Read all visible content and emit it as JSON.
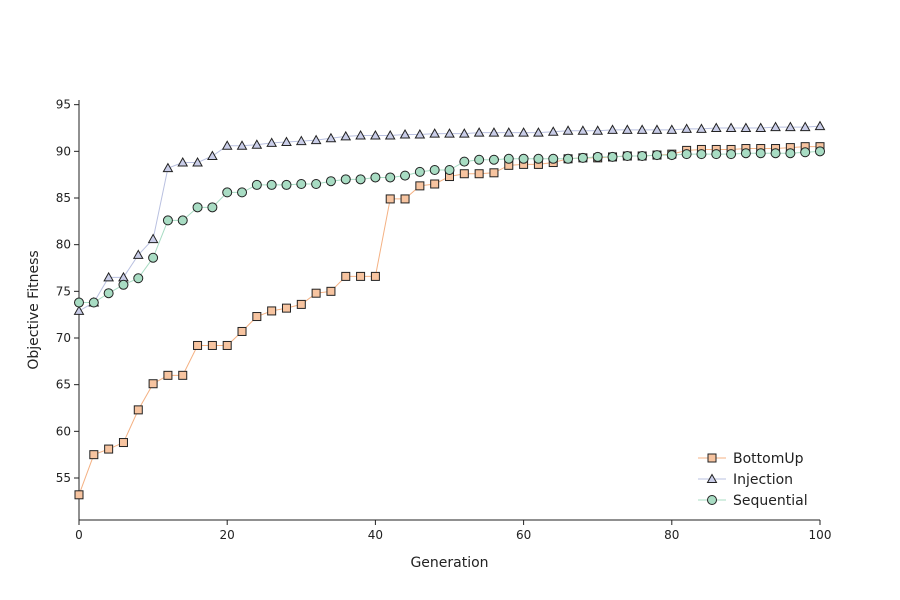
{
  "chart_data": {
    "type": "line",
    "title": "",
    "xlabel": "Generation",
    "ylabel": "Objective Fitness",
    "xlim": [
      0,
      100
    ],
    "ylim": [
      50.5,
      95.5
    ],
    "xticks": [
      0,
      20,
      40,
      60,
      80,
      100
    ],
    "yticks": [
      55,
      60,
      65,
      70,
      75,
      80,
      85,
      90,
      95
    ],
    "grid": false,
    "legend_position": "bottom-right",
    "x": [
      0,
      2,
      4,
      6,
      8,
      10,
      12,
      14,
      16,
      18,
      20,
      22,
      24,
      26,
      28,
      30,
      32,
      34,
      36,
      38,
      40,
      42,
      44,
      46,
      48,
      50,
      52,
      54,
      56,
      58,
      60,
      62,
      64,
      66,
      68,
      70,
      72,
      74,
      76,
      78,
      80,
      82,
      84,
      86,
      88,
      90,
      92,
      94,
      96,
      98,
      100
    ],
    "series": [
      {
        "name": "BottomUp",
        "marker": "square",
        "fill": "#f7c4a0",
        "line_color": "#f4b183",
        "values": [
          53.2,
          57.5,
          58.1,
          58.8,
          62.3,
          65.1,
          66.0,
          66.0,
          69.2,
          69.2,
          69.2,
          70.7,
          72.3,
          72.9,
          73.2,
          73.6,
          74.8,
          75.0,
          76.6,
          76.6,
          76.6,
          84.9,
          84.9,
          86.3,
          86.5,
          87.3,
          87.6,
          87.6,
          87.7,
          88.5,
          88.6,
          88.6,
          88.8,
          89.2,
          89.3,
          89.3,
          89.4,
          89.5,
          89.5,
          89.6,
          89.7,
          90.1,
          90.2,
          90.2,
          90.2,
          90.3,
          90.3,
          90.3,
          90.4,
          90.5,
          90.5
        ]
      },
      {
        "name": "Injection",
        "marker": "triangle",
        "fill": "#c9cde8",
        "line_color": "#b9c0e0",
        "values": [
          72.9,
          73.8,
          76.5,
          76.5,
          78.9,
          80.6,
          88.2,
          88.8,
          88.8,
          89.5,
          90.6,
          90.6,
          90.7,
          90.9,
          91.0,
          91.1,
          91.2,
          91.4,
          91.6,
          91.7,
          91.7,
          91.7,
          91.8,
          91.8,
          91.9,
          91.9,
          91.9,
          92.0,
          92.0,
          92.0,
          92.0,
          92.0,
          92.1,
          92.2,
          92.2,
          92.2,
          92.3,
          92.3,
          92.3,
          92.3,
          92.3,
          92.4,
          92.4,
          92.5,
          92.5,
          92.5,
          92.5,
          92.6,
          92.6,
          92.6,
          92.7
        ]
      },
      {
        "name": "Sequential",
        "marker": "circle",
        "fill": "#a8dcc3",
        "line_color": "#a8dcc3",
        "values": [
          73.8,
          73.8,
          74.8,
          75.7,
          76.4,
          78.6,
          82.6,
          82.6,
          84.0,
          84.0,
          85.6,
          85.6,
          86.4,
          86.4,
          86.4,
          86.5,
          86.5,
          86.8,
          87.0,
          87.0,
          87.2,
          87.2,
          87.4,
          87.8,
          88.0,
          88.0,
          88.9,
          89.1,
          89.1,
          89.2,
          89.2,
          89.2,
          89.2,
          89.2,
          89.3,
          89.4,
          89.4,
          89.5,
          89.5,
          89.6,
          89.6,
          89.7,
          89.7,
          89.7,
          89.7,
          89.8,
          89.8,
          89.8,
          89.8,
          89.9,
          90.0
        ]
      }
    ]
  }
}
